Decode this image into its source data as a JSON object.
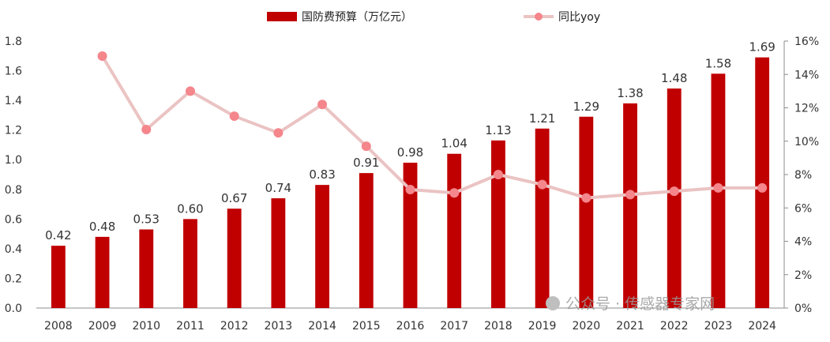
{
  "chart_data": {
    "type": "bar",
    "title": "",
    "categories": [
      "2008",
      "2009",
      "2010",
      "2011",
      "2012",
      "2013",
      "2014",
      "2015",
      "2016",
      "2017",
      "2018",
      "2019",
      "2020",
      "2021",
      "2022",
      "2023",
      "2024"
    ],
    "series": [
      {
        "name": "国防费预算（万亿元）",
        "type": "bar",
        "axis": "left",
        "color": "#C00000",
        "values": [
          0.42,
          0.48,
          0.53,
          0.6,
          0.67,
          0.74,
          0.83,
          0.91,
          0.98,
          1.04,
          1.13,
          1.21,
          1.29,
          1.38,
          1.48,
          1.58,
          1.69
        ],
        "labels": [
          "0.42",
          "0.48",
          "0.53",
          "0.60",
          "0.67",
          "0.74",
          "0.83",
          "0.91",
          "0.98",
          "1.04",
          "1.13",
          "1.21",
          "1.29",
          "1.38",
          "1.48",
          "1.58",
          "1.69"
        ]
      },
      {
        "name": "同比yoy",
        "type": "line",
        "axis": "right",
        "line_color": "#EBC3C3",
        "marker_color": "#F4868C",
        "values": [
          null,
          15.1,
          10.7,
          13.0,
          11.5,
          10.5,
          12.2,
          9.7,
          7.1,
          6.9,
          8.0,
          7.4,
          6.6,
          6.8,
          7.0,
          7.2,
          7.2
        ]
      }
    ],
    "y_left": {
      "range": [
        0,
        1.8
      ],
      "ticks": [
        "0.0",
        "0.2",
        "0.4",
        "0.6",
        "0.8",
        "1.0",
        "1.2",
        "1.4",
        "1.6",
        "1.8"
      ]
    },
    "y_right": {
      "range": [
        0,
        16
      ],
      "unit": "%",
      "ticks": [
        "0%",
        "2%",
        "4%",
        "6%",
        "8%",
        "10%",
        "12%",
        "14%",
        "16%"
      ]
    },
    "legend": {
      "position": "top"
    },
    "grid": false
  },
  "watermark_text": "公众号 · 传感器专家网"
}
